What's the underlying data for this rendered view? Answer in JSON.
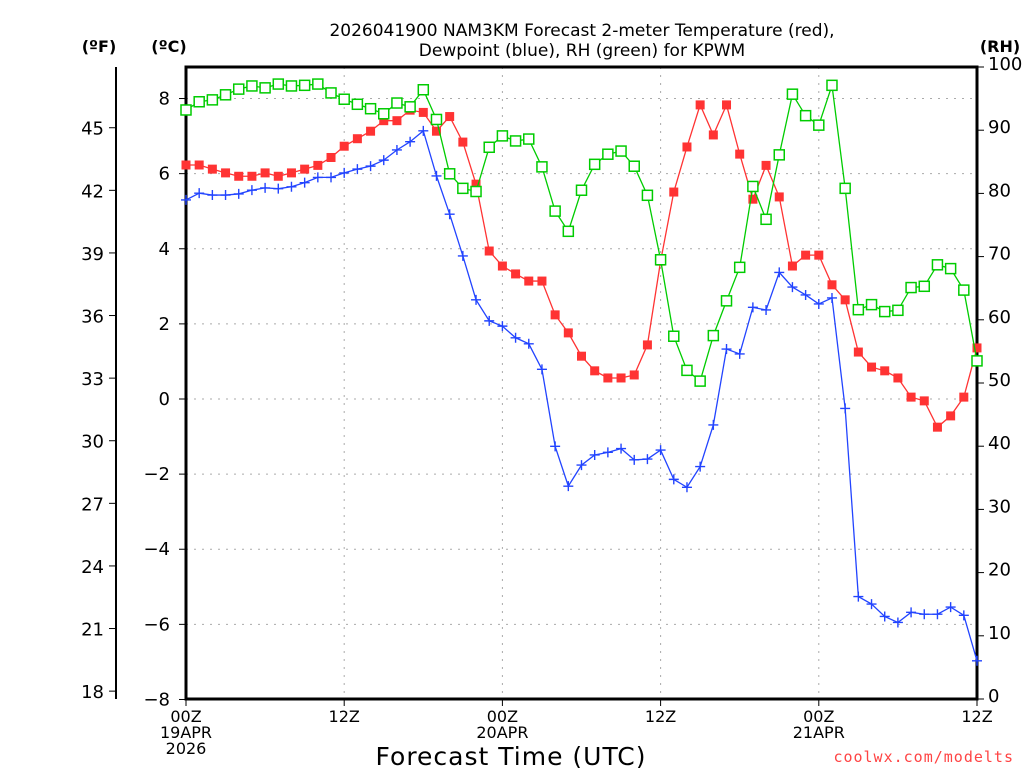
{
  "chart_data": {
    "type": "line",
    "title_lines": [
      "2026041900 NAM3KM Forecast 2-meter Temperature (red),",
      "Dewpoint (blue), RH (green) for KPWM"
    ],
    "xlabel": "Forecast Time (UTC)",
    "credit": "coolwx.com/modelts",
    "unit_labels": {
      "fahrenheit": "(ºF)",
      "celsius": "(ºC)",
      "rh": "(RH)"
    },
    "x_hours_range": [
      0,
      60
    ],
    "x_ticks": [
      {
        "hour": 0,
        "lines": [
          "00Z",
          "19APR",
          "2026"
        ]
      },
      {
        "hour": 12,
        "lines": [
          "12Z"
        ]
      },
      {
        "hour": 24,
        "lines": [
          "00Z",
          "20APR"
        ]
      },
      {
        "hour": 36,
        "lines": [
          "12Z"
        ]
      },
      {
        "hour": 48,
        "lines": [
          "00Z",
          "21APR"
        ]
      },
      {
        "hour": 60,
        "lines": [
          "12Z"
        ]
      }
    ],
    "celsius_range": [
      -8,
      9.1
    ],
    "celsius_ticks": [
      "-8",
      "-6",
      "-4",
      "-2",
      "0",
      "2",
      "4",
      "6",
      "8"
    ],
    "fahrenheit_ticks": [
      "18",
      "21",
      "24",
      "27",
      "30",
      "33",
      "36",
      "39",
      "42",
      "45"
    ],
    "rh_range": [
      0,
      100
    ],
    "rh_ticks": [
      "0",
      "10",
      "20",
      "30",
      "40",
      "50",
      "60",
      "70",
      "80",
      "90",
      "100"
    ],
    "grid": true,
    "series": [
      {
        "name": "Temperature (°C)",
        "color": "#ff3333",
        "marker": "filled-square",
        "axis": "celsius",
        "values": [
          6.23,
          6.23,
          6.12,
          6.02,
          5.93,
          5.93,
          6.02,
          5.93,
          6.02,
          6.12,
          6.22,
          6.43,
          6.73,
          6.93,
          7.13,
          7.41,
          7.41,
          7.69,
          7.63,
          7.13,
          7.52,
          6.84,
          5.72,
          3.94,
          3.54,
          3.33,
          3.14,
          3.14,
          2.24,
          1.76,
          1.14,
          0.75,
          0.56,
          0.56,
          0.64,
          1.44,
          3.67,
          5.51,
          6.71,
          7.83,
          7.03,
          7.83,
          6.52,
          5.32,
          6.22,
          5.38,
          3.54,
          3.83,
          3.83,
          3.04,
          2.64,
          1.25,
          0.85,
          0.75,
          0.56,
          0.05,
          -0.05,
          -0.75,
          -0.45,
          0.05,
          1.36
        ]
      },
      {
        "name": "Dewpoint (°C)",
        "color": "#2244ff",
        "marker": "plus",
        "axis": "celsius",
        "values": [
          5.3,
          5.48,
          5.43,
          5.43,
          5.46,
          5.56,
          5.62,
          5.6,
          5.65,
          5.76,
          5.9,
          5.9,
          6.02,
          6.12,
          6.2,
          6.36,
          6.63,
          6.85,
          7.14,
          5.94,
          4.92,
          3.81,
          2.64,
          2.08,
          1.94,
          1.63,
          1.47,
          0.79,
          -1.26,
          -2.32,
          -1.76,
          -1.49,
          -1.42,
          -1.32,
          -1.62,
          -1.6,
          -1.36,
          -2.14,
          -2.35,
          -1.8,
          -0.69,
          1.33,
          1.2,
          2.44,
          2.37,
          3.37,
          2.98,
          2.77,
          2.53,
          2.69,
          -0.25,
          -5.26,
          -5.46,
          -5.79,
          -5.95,
          -5.68,
          -5.73,
          -5.73,
          -5.54,
          -5.76,
          -6.97
        ]
      },
      {
        "name": "RH (%)",
        "color": "#00cc00",
        "marker": "open-square",
        "axis": "rh",
        "values": [
          93.2,
          94.5,
          94.8,
          95.6,
          96.5,
          97.0,
          96.7,
          97.3,
          97.0,
          97.1,
          97.3,
          95.9,
          94.9,
          94.1,
          93.4,
          92.6,
          94.3,
          93.7,
          96.4,
          91.7,
          83.1,
          80.8,
          80.3,
          87.3,
          89.1,
          88.3,
          88.6,
          84.2,
          77.2,
          74.0,
          80.5,
          84.6,
          86.2,
          86.7,
          84.3,
          79.7,
          69.5,
          57.4,
          52.0,
          50.3,
          57.5,
          63.0,
          68.3,
          81.1,
          75.9,
          86.1,
          95.7,
          92.3,
          90.8,
          97.1,
          80.8,
          61.6,
          62.4,
          61.3,
          61.5,
          65.1,
          65.3,
          68.7,
          68.1,
          64.7,
          53.5
        ]
      }
    ]
  }
}
